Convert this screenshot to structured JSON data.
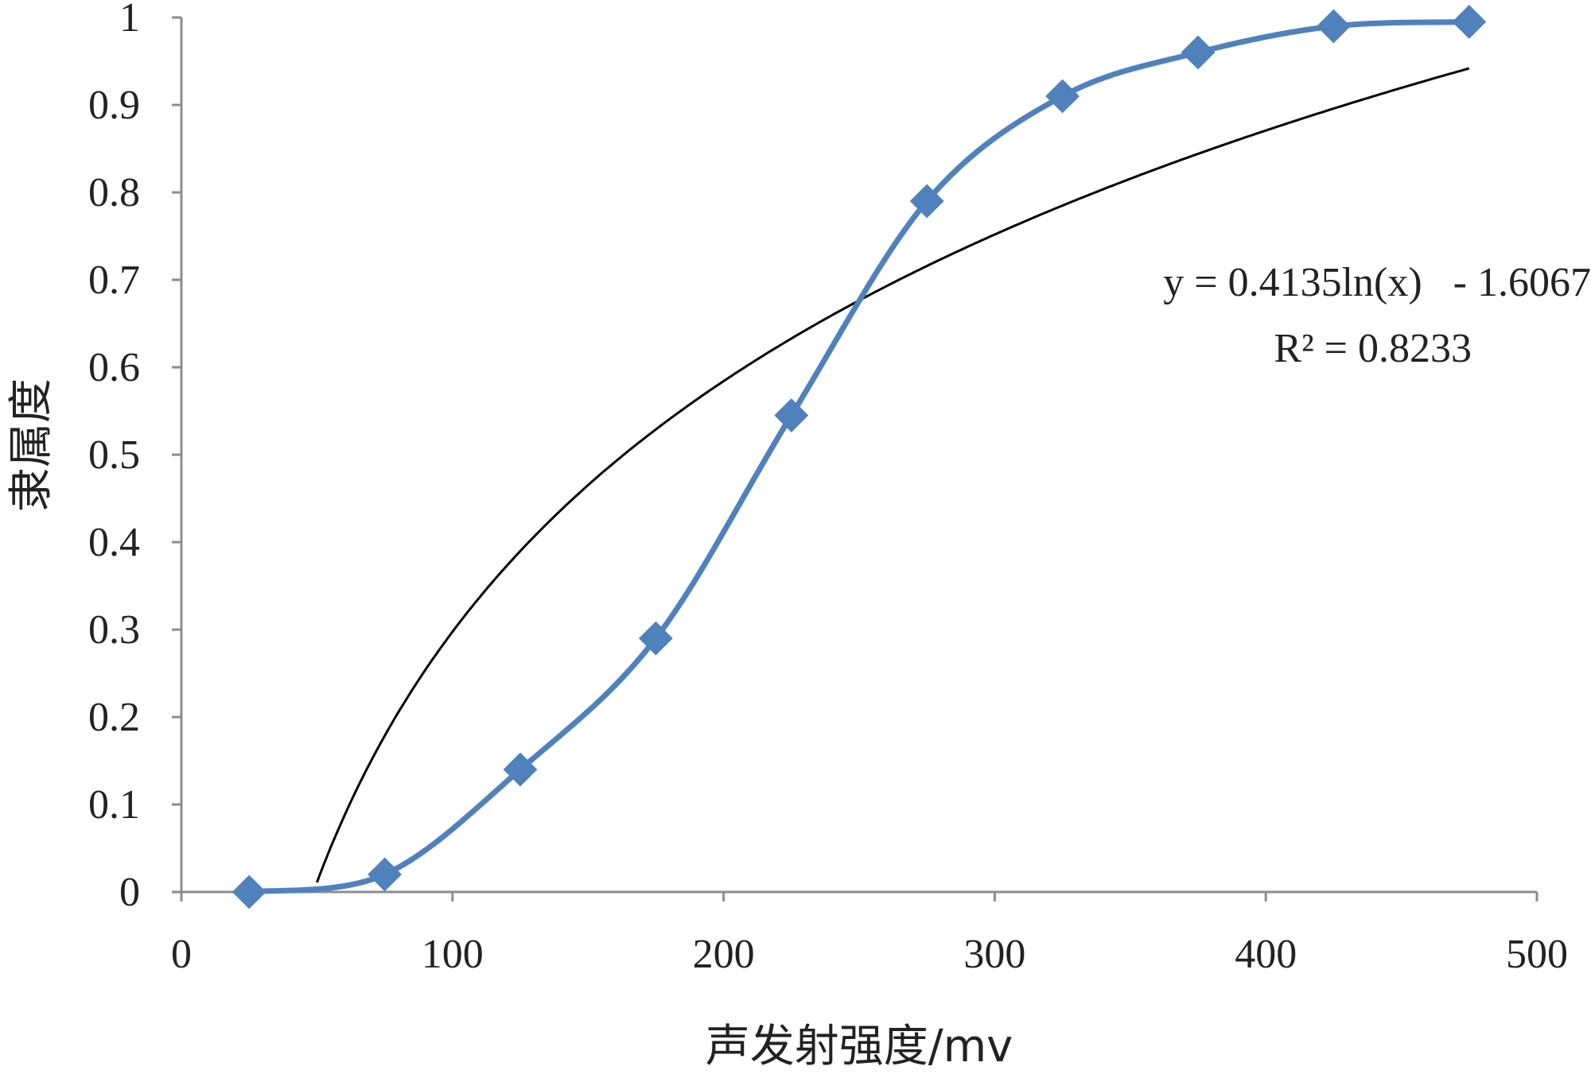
{
  "chart_data": {
    "type": "line",
    "xlabel": "声发射强度/mv",
    "ylabel": "隶属度",
    "xlim": [
      0,
      500
    ],
    "ylim": [
      0,
      1
    ],
    "xticks": [
      0,
      100,
      200,
      300,
      400,
      500
    ],
    "yticks": [
      0,
      0.1,
      0.2,
      0.3,
      0.4,
      0.5,
      0.6,
      0.7,
      0.8,
      0.9,
      1
    ],
    "x_tick_labels": [
      "0",
      "100",
      "200",
      "300",
      "400",
      "500"
    ],
    "y_tick_labels": [
      "0",
      "0.1",
      "0.2",
      "0.3",
      "0.4",
      "0.5",
      "0.6",
      "0.7",
      "0.8",
      "0.9",
      "1"
    ],
    "grid": false,
    "series": [
      {
        "x": [
          25,
          75,
          125,
          175,
          225,
          275,
          325,
          375,
          425,
          475
        ],
        "values": [
          0,
          0.02,
          0.14,
          0.29,
          0.545,
          0.79,
          0.91,
          0.96,
          0.99,
          0.995
        ],
        "color": "#4f81bd",
        "marker": "diamond",
        "smooth": true
      }
    ],
    "trendline": {
      "type": "logarithmic",
      "equation_text": "y = 0.4135ln(x)   - 1.6067",
      "r2_text": "R² = 0.8233",
      "a": 0.4135,
      "b": -1.6067,
      "x_range": [
        50,
        475
      ],
      "color": "#000000"
    }
  }
}
